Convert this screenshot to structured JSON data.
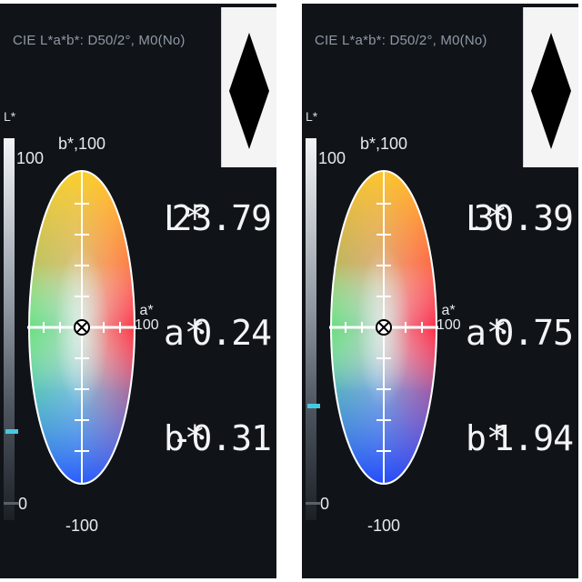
{
  "screens": [
    {
      "header": "CIE L*a*b*: D50/2°, M0(No)",
      "lstar_label": "L*",
      "l_max": "100",
      "l_min": "0",
      "b_axis_top": "b*,100",
      "b_axis_bottom": "-100",
      "a_axis_label": "a*",
      "a_axis_value": "100",
      "lightness_marker_level": 0.2379,
      "readings": {
        "L_label": "L*",
        "L_value": "23.79",
        "a_label": "a*",
        "a_value": "0.24",
        "b_label": "b*",
        "b_value": "-0.31"
      }
    },
    {
      "header": "CIE L*a*b*: D50/2°, M0(No)",
      "lstar_label": "L*",
      "l_max": "100",
      "l_min": "0",
      "b_axis_top": "b*,100",
      "b_axis_bottom": "-100",
      "a_axis_label": "a*",
      "a_axis_value": "100",
      "lightness_marker_level": 0.3039,
      "readings": {
        "L_label": "L*",
        "L_value": "30.39",
        "a_label": "a*",
        "a_value": "0.75",
        "b_label": "b*",
        "b_value": "1.94"
      }
    }
  ],
  "icons": {
    "toggle": "diamond-icon",
    "crosshair": "crosshair-icon"
  },
  "colors": {
    "screen_bg": "#101418",
    "marker": "#48c8e0",
    "text": "#f2f4f6"
  }
}
